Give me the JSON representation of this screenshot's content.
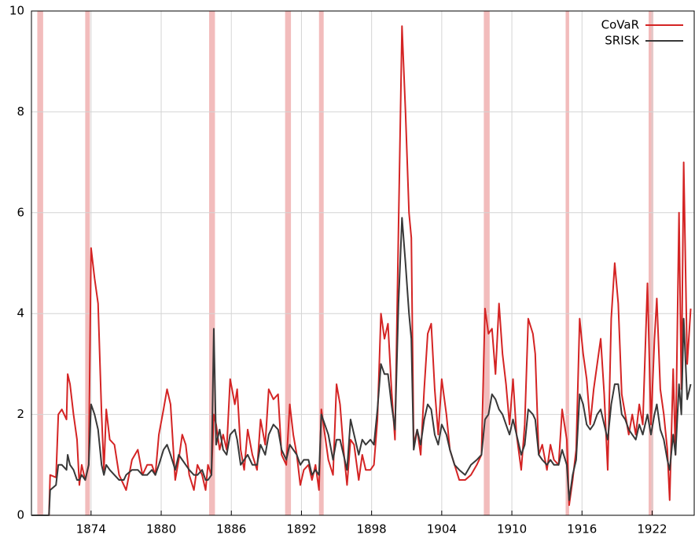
{
  "chart_data": {
    "type": "line",
    "x": [
      1868.9,
      1870.4,
      1870.5,
      1871.0,
      1871.2,
      1871.5,
      1871.9,
      1872.0,
      1872.2,
      1872.5,
      1872.8,
      1873.0,
      1873.2,
      1873.5,
      1873.8,
      1874.0,
      1874.3,
      1874.6,
      1874.9,
      1875.1,
      1875.3,
      1875.6,
      1876.0,
      1876.4,
      1876.8,
      1877.0,
      1877.5,
      1878.0,
      1878.4,
      1878.8,
      1879.2,
      1879.5,
      1879.8,
      1880.2,
      1880.5,
      1880.8,
      1881.2,
      1881.5,
      1881.8,
      1882.1,
      1882.4,
      1882.8,
      1883.1,
      1883.5,
      1883.8,
      1884.0,
      1884.3,
      1884.5,
      1884.7,
      1885.0,
      1885.3,
      1885.6,
      1885.9,
      1886.3,
      1886.5,
      1886.8,
      1887.1,
      1887.4,
      1887.8,
      1888.2,
      1888.5,
      1888.9,
      1889.2,
      1889.6,
      1890.0,
      1890.3,
      1890.7,
      1891.0,
      1891.3,
      1891.6,
      1891.9,
      1892.2,
      1892.6,
      1892.9,
      1893.2,
      1893.5,
      1893.7,
      1894.0,
      1894.3,
      1894.7,
      1895.0,
      1895.3,
      1895.6,
      1895.9,
      1896.2,
      1896.5,
      1896.9,
      1897.2,
      1897.5,
      1897.9,
      1898.2,
      1898.5,
      1898.8,
      1899.1,
      1899.4,
      1899.7,
      1900.0,
      1900.3,
      1900.6,
      1900.9,
      1901.2,
      1901.4,
      1901.6,
      1901.9,
      1902.2,
      1902.5,
      1902.8,
      1903.1,
      1903.4,
      1903.7,
      1904.0,
      1904.4,
      1904.7,
      1905.1,
      1905.5,
      1906.0,
      1906.5,
      1907.0,
      1907.4,
      1907.7,
      1908.0,
      1908.3,
      1908.6,
      1908.9,
      1909.2,
      1909.5,
      1909.8,
      1910.1,
      1910.4,
      1910.8,
      1911.1,
      1911.4,
      1911.8,
      1912.0,
      1912.3,
      1912.6,
      1913.0,
      1913.3,
      1913.6,
      1914.0,
      1914.3,
      1914.7,
      1914.9,
      1915.2,
      1915.5,
      1915.8,
      1916.1,
      1916.4,
      1916.7,
      1917.0,
      1917.3,
      1917.6,
      1917.9,
      1918.2,
      1918.5,
      1918.8,
      1919.1,
      1919.4,
      1919.7,
      1920.0,
      1920.3,
      1920.6,
      1920.9,
      1921.2,
      1921.6,
      1921.9,
      1922.2,
      1922.4,
      1922.7,
      1923.0,
      1923.3,
      1923.5,
      1923.8,
      1924.0,
      1924.3,
      1924.5,
      1924.7,
      1925.0,
      1925.3
    ],
    "series": [
      {
        "name": "CoVaR",
        "color": "#d42424",
        "values": [
          0,
          0,
          0.8,
          0.75,
          2.0,
          2.1,
          1.9,
          2.8,
          2.6,
          2.0,
          1.5,
          0.6,
          1.0,
          0.7,
          1.0,
          5.3,
          4.7,
          4.2,
          2.0,
          0.9,
          2.1,
          1.5,
          1.4,
          0.8,
          0.6,
          0.5,
          1.1,
          1.3,
          0.8,
          1.0,
          1.0,
          0.8,
          1.6,
          2.1,
          2.5,
          2.2,
          0.7,
          1.1,
          1.6,
          1.4,
          0.8,
          0.5,
          1.0,
          0.8,
          0.5,
          1.0,
          0.8,
          2.0,
          1.8,
          1.3,
          1.6,
          1.3,
          2.7,
          2.2,
          2.5,
          1.3,
          0.9,
          1.7,
          1.2,
          0.9,
          1.9,
          1.4,
          2.5,
          2.3,
          2.4,
          1.2,
          1.0,
          2.2,
          1.6,
          1.2,
          0.6,
          0.9,
          1.0,
          0.7,
          1.0,
          0.5,
          2.1,
          1.6,
          1.1,
          0.8,
          2.6,
          2.2,
          1.3,
          0.6,
          1.5,
          1.4,
          0.7,
          1.2,
          0.9,
          0.9,
          1.0,
          1.9,
          4.0,
          3.5,
          3.8,
          2.5,
          1.5,
          5.7,
          9.7,
          8.0,
          6.0,
          5.5,
          1.4,
          1.7,
          1.2,
          2.5,
          3.6,
          3.8,
          2.5,
          1.6,
          2.7,
          2.0,
          1.3,
          1.0,
          0.7,
          0.7,
          0.8,
          1.0,
          1.2,
          4.1,
          3.6,
          3.7,
          2.8,
          4.2,
          3.2,
          2.6,
          1.8,
          2.7,
          1.6,
          0.9,
          1.8,
          3.9,
          3.6,
          3.2,
          1.2,
          1.4,
          0.9,
          1.4,
          1.1,
          1.0,
          2.1,
          1.5,
          0.2,
          0.7,
          1.3,
          3.9,
          3.2,
          2.7,
          1.8,
          2.5,
          3.0,
          3.5,
          2.4,
          0.9,
          3.9,
          5.0,
          4.2,
          2.4,
          2.0,
          1.6,
          2.0,
          1.6,
          2.2,
          1.8,
          4.6,
          1.8,
          3.5,
          4.3,
          2.5,
          2.0,
          1.3,
          0.3,
          2.9,
          1.2,
          6.0,
          2.5,
          7.0,
          3.0,
          4.1
        ]
      },
      {
        "name": "SRISK",
        "color": "#383838",
        "values": [
          0,
          0,
          0.5,
          0.6,
          1.0,
          1.0,
          0.9,
          1.2,
          1.0,
          0.9,
          0.7,
          0.7,
          0.8,
          0.7,
          1.0,
          2.2,
          2.0,
          1.7,
          1.0,
          0.8,
          1.0,
          0.9,
          0.8,
          0.7,
          0.7,
          0.8,
          0.9,
          0.9,
          0.8,
          0.8,
          0.9,
          0.8,
          1.0,
          1.3,
          1.4,
          1.2,
          0.9,
          1.2,
          1.1,
          1.0,
          0.9,
          0.8,
          0.8,
          0.9,
          0.7,
          0.7,
          0.8,
          3.7,
          1.4,
          1.7,
          1.3,
          1.2,
          1.6,
          1.7,
          1.5,
          1.0,
          1.1,
          1.2,
          1.0,
          1.0,
          1.4,
          1.2,
          1.6,
          1.8,
          1.7,
          1.3,
          1.1,
          1.4,
          1.3,
          1.2,
          1.0,
          1.1,
          1.1,
          0.8,
          0.9,
          0.8,
          2.0,
          1.8,
          1.6,
          1.1,
          1.5,
          1.5,
          1.2,
          0.9,
          1.9,
          1.6,
          1.2,
          1.5,
          1.4,
          1.5,
          1.4,
          2.1,
          3.0,
          2.8,
          2.8,
          2.2,
          1.7,
          4.2,
          5.9,
          5.0,
          4.0,
          3.5,
          1.3,
          1.7,
          1.4,
          1.9,
          2.2,
          2.1,
          1.6,
          1.4,
          1.8,
          1.6,
          1.3,
          1.0,
          0.9,
          0.8,
          1.0,
          1.1,
          1.2,
          1.9,
          2.0,
          2.4,
          2.3,
          2.1,
          2.0,
          1.8,
          1.6,
          1.9,
          1.6,
          1.2,
          1.4,
          2.1,
          2.0,
          1.9,
          1.2,
          1.1,
          1.0,
          1.1,
          1.0,
          1.0,
          1.3,
          1.0,
          0.3,
          0.8,
          1.1,
          2.4,
          2.2,
          1.8,
          1.7,
          1.8,
          2.0,
          2.1,
          1.8,
          1.5,
          2.2,
          2.6,
          2.6,
          2.0,
          1.9,
          1.7,
          1.6,
          1.5,
          1.8,
          1.6,
          2.0,
          1.6,
          2.0,
          2.2,
          1.7,
          1.5,
          1.1,
          0.9,
          1.6,
          1.2,
          2.6,
          2.0,
          3.9,
          2.3,
          2.6
        ]
      }
    ],
    "shaded_periods": [
      [
        1869.4,
        1869.9
      ],
      [
        1873.5,
        1873.9
      ],
      [
        1884.1,
        1884.6
      ],
      [
        1890.6,
        1891.1
      ],
      [
        1893.5,
        1893.9
      ],
      [
        1907.6,
        1908.1
      ],
      [
        1914.6,
        1914.9
      ],
      [
        1921.7,
        1922.1
      ]
    ],
    "shade_color": "#f2bcbc",
    "xlim": [
      1868.9,
      1925.6
    ],
    "xticks": [
      1874,
      1880,
      1886,
      1892,
      1898,
      1904,
      1910,
      1916,
      1922
    ],
    "ylim": [
      0,
      10
    ],
    "yticks": [
      0,
      2,
      4,
      6,
      8,
      10
    ],
    "grid": true,
    "legend": "top-right"
  }
}
